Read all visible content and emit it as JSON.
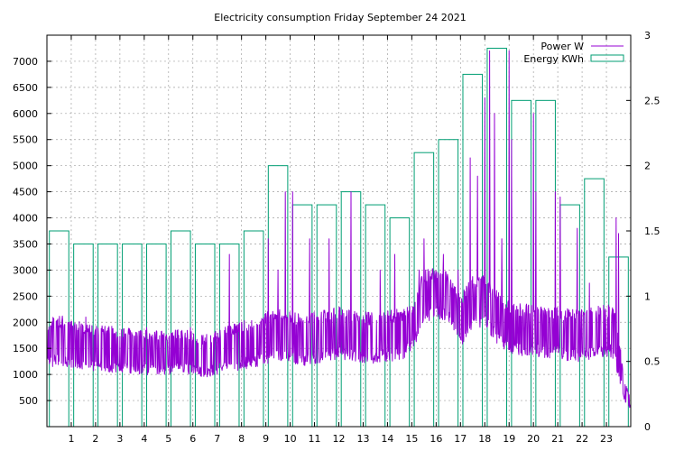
{
  "chart_data": {
    "type": "line",
    "title": "Electricity consumption Friday September 24 2021",
    "xlabel": "",
    "ylabel": "",
    "y2label": "",
    "xlim": [
      0,
      24
    ],
    "ylim": [
      0,
      7500
    ],
    "y2lim": [
      0,
      3
    ],
    "x_ticks": [
      1,
      2,
      3,
      4,
      5,
      6,
      7,
      8,
      9,
      10,
      11,
      12,
      13,
      14,
      15,
      16,
      17,
      18,
      19,
      20,
      21,
      22,
      23
    ],
    "y_ticks": [
      500,
      1000,
      1500,
      2000,
      2500,
      3000,
      3500,
      4000,
      4500,
      5000,
      5500,
      6000,
      6500,
      7000
    ],
    "y2_ticks": [
      "0",
      "0.5",
      "1",
      "1.5",
      "2",
      "2.5",
      "3"
    ],
    "y2_tick_values": [
      0,
      0.5,
      1,
      1.5,
      2,
      2.5,
      3
    ],
    "grid": true,
    "legend_position": "top-right",
    "colors": {
      "power": "#9400d3",
      "energy": "#009e73",
      "grid": "#a0a0a0"
    },
    "series": [
      {
        "name": "Power W",
        "axis": "left",
        "style": "line",
        "baseline": [
          [
            0,
            1600
          ],
          [
            0.5,
            1650
          ],
          [
            1,
            1600
          ],
          [
            1.5,
            1550
          ],
          [
            2,
            1500
          ],
          [
            2.5,
            1500
          ],
          [
            3,
            1450
          ],
          [
            3.5,
            1450
          ],
          [
            4,
            1420
          ],
          [
            4.5,
            1420
          ],
          [
            5,
            1420
          ],
          [
            5.5,
            1450
          ],
          [
            6,
            1400
          ],
          [
            6.5,
            1350
          ],
          [
            7,
            1420
          ],
          [
            7.5,
            1500
          ],
          [
            8,
            1550
          ],
          [
            8.5,
            1600
          ],
          [
            9,
            1700
          ],
          [
            9.5,
            1750
          ],
          [
            10,
            1700
          ],
          [
            10.5,
            1650
          ],
          [
            11,
            1700
          ],
          [
            11.5,
            1750
          ],
          [
            12,
            1800
          ],
          [
            12.5,
            1750
          ],
          [
            13,
            1700
          ],
          [
            13.5,
            1700
          ],
          [
            14,
            1750
          ],
          [
            14.5,
            1750
          ],
          [
            15,
            1900
          ],
          [
            15.5,
            2500
          ],
          [
            16,
            2550
          ],
          [
            16.5,
            2500
          ],
          [
            17,
            2000
          ],
          [
            17.5,
            2400
          ],
          [
            18,
            2400
          ],
          [
            18.5,
            2100
          ],
          [
            19,
            1900
          ],
          [
            19.5,
            1850
          ],
          [
            20,
            1850
          ],
          [
            20.5,
            1800
          ],
          [
            21,
            1800
          ],
          [
            21.5,
            1750
          ],
          [
            22,
            1750
          ],
          [
            22.5,
            1800
          ],
          [
            23,
            1850
          ],
          [
            23.3,
            1800
          ],
          [
            23.6,
            1100
          ],
          [
            23.75,
            700
          ],
          [
            23.9,
            500
          ],
          [
            24,
            500
          ]
        ],
        "spikes": [
          [
            1.6,
            2100
          ],
          [
            4.1,
            1900
          ],
          [
            5.9,
            1900
          ],
          [
            7.5,
            3300
          ],
          [
            9.1,
            3600
          ],
          [
            9.5,
            3000
          ],
          [
            9.8,
            4500
          ],
          [
            10.1,
            4500
          ],
          [
            10.8,
            3600
          ],
          [
            11.6,
            3600
          ],
          [
            12.5,
            4500
          ],
          [
            13.7,
            3000
          ],
          [
            14.3,
            3300
          ],
          [
            15.3,
            3000
          ],
          [
            15.5,
            3600
          ],
          [
            16.3,
            3300
          ],
          [
            16.9,
            3000
          ],
          [
            17.4,
            5150
          ],
          [
            17.7,
            4800
          ],
          [
            18,
            6300
          ],
          [
            18.2,
            7200
          ],
          [
            18.4,
            6000
          ],
          [
            18.7,
            3600
          ],
          [
            19,
            7200
          ],
          [
            19.1,
            5500
          ],
          [
            20,
            6000
          ],
          [
            20.1,
            4500
          ],
          [
            20.9,
            4500
          ],
          [
            21.1,
            4400
          ],
          [
            21.8,
            3800
          ],
          [
            22.3,
            2750
          ],
          [
            23.4,
            4000
          ],
          [
            23.5,
            3700
          ]
        ]
      },
      {
        "name": "Energy KWh",
        "axis": "right",
        "style": "steps",
        "x": [
          0,
          1,
          2,
          3,
          4,
          5,
          6,
          7,
          8,
          9,
          10,
          11,
          12,
          13,
          14,
          15,
          16,
          17,
          18,
          19,
          20,
          21,
          22,
          23
        ],
        "values": [
          1.5,
          1.4,
          1.4,
          1.4,
          1.4,
          1.5,
          1.4,
          1.4,
          1.5,
          2.0,
          1.7,
          1.7,
          1.8,
          1.7,
          1.6,
          2.1,
          2.2,
          2.7,
          2.9,
          2.5,
          2.5,
          1.7,
          1.9,
          1.3
        ]
      }
    ]
  }
}
